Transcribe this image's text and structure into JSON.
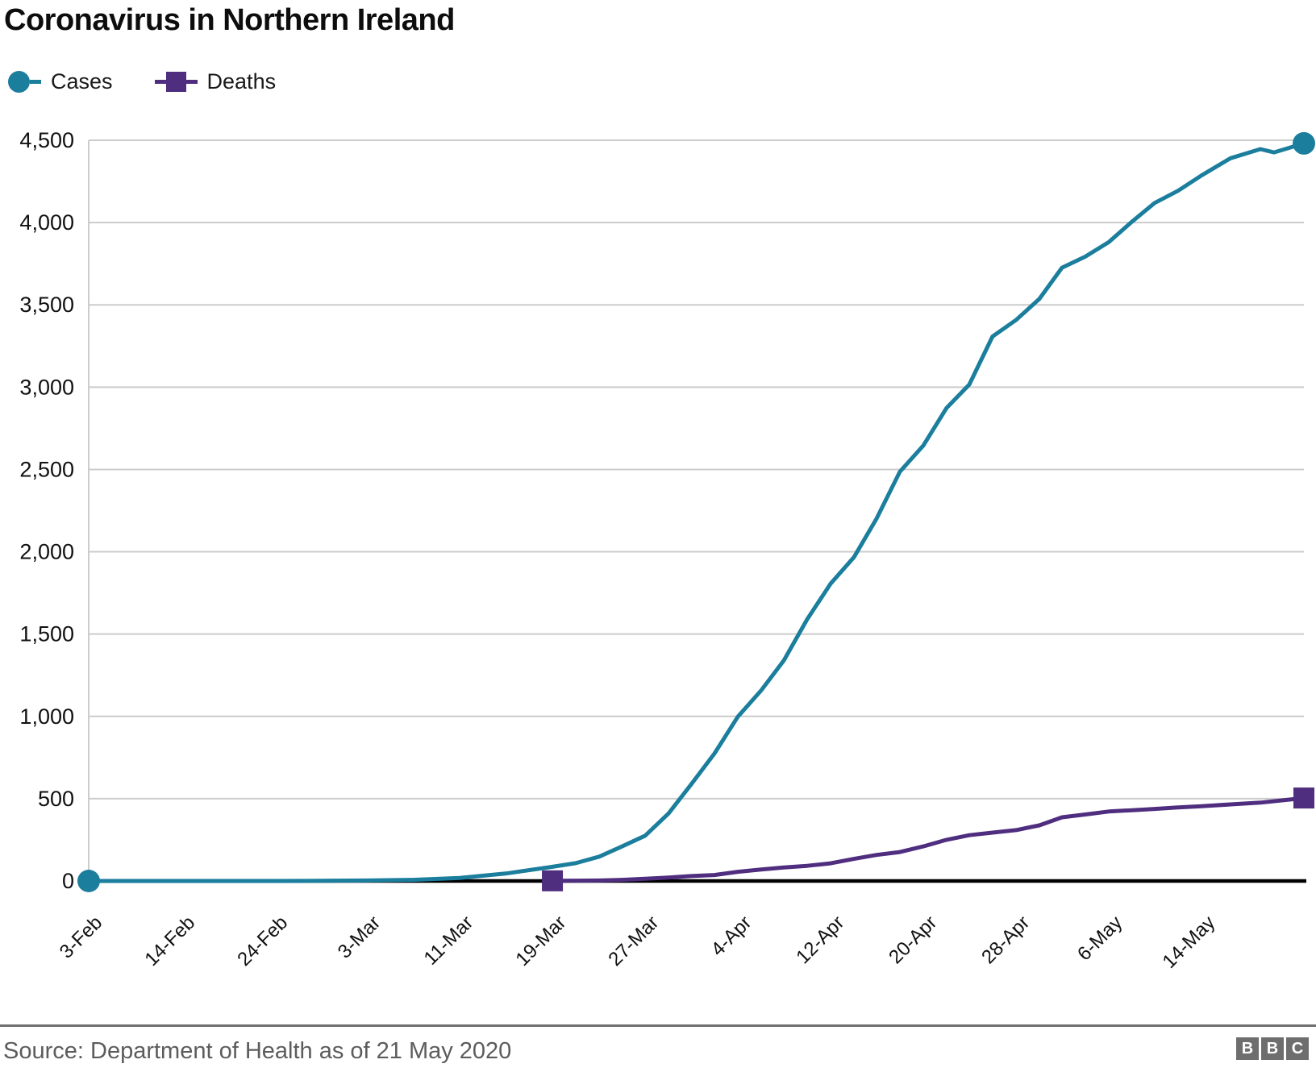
{
  "header": {
    "title": "Coronavirus in Northern Ireland"
  },
  "legend": {
    "items": [
      {
        "label": "Cases",
        "color": "#1b7e9d",
        "marker": "circle"
      },
      {
        "label": "Deaths",
        "color": "#4f2d7f",
        "marker": "square"
      }
    ]
  },
  "footer": {
    "source": "Source: Department of Health as of 21 May 2020",
    "logo_letters": [
      "B",
      "B",
      "C"
    ]
  },
  "chart_data": {
    "type": "line",
    "title": "Coronavirus in Northern Ireland",
    "xlabel": "",
    "ylabel": "",
    "ylim": [
      0,
      4500
    ],
    "grid": true,
    "legend_position": "top-left",
    "axis_color": "#000000",
    "grid_color": "#cccccc",
    "y_ticks": [
      {
        "label": "0",
        "value": 0
      },
      {
        "label": "500",
        "value": 500
      },
      {
        "label": "1,000",
        "value": 1000
      },
      {
        "label": "1,500",
        "value": 1500
      },
      {
        "label": "2,000",
        "value": 2000
      },
      {
        "label": "2,500",
        "value": 2500
      },
      {
        "label": "3,000",
        "value": 3000
      },
      {
        "label": "3,500",
        "value": 3500
      },
      {
        "label": "4,000",
        "value": 4000
      },
      {
        "label": "4,500",
        "value": 4500
      }
    ],
    "x_ticks": [
      {
        "label": "3-Feb",
        "t": 0.0
      },
      {
        "label": "14-Feb",
        "t": 0.0763
      },
      {
        "label": "24-Feb",
        "t": 0.1526
      },
      {
        "label": "3-Mar",
        "t": 0.2289
      },
      {
        "label": "11-Mar",
        "t": 0.3052
      },
      {
        "label": "19-Mar",
        "t": 0.3816
      },
      {
        "label": "27-Mar",
        "t": 0.4579
      },
      {
        "label": "4-Apr",
        "t": 0.5342
      },
      {
        "label": "12-Apr",
        "t": 0.6105
      },
      {
        "label": "20-Apr",
        "t": 0.6868
      },
      {
        "label": "28-Apr",
        "t": 0.7631
      },
      {
        "label": "6-May",
        "t": 0.8394
      },
      {
        "label": "14-May",
        "t": 0.9157
      }
    ],
    "series": [
      {
        "name": "Cases",
        "color": "#1b7e9d",
        "marker": "circle",
        "points": [
          [
            "3-Feb",
            0,
            0.0
          ],
          [
            "14-Feb",
            0,
            0.0763
          ],
          [
            "24-Feb",
            0,
            0.1526
          ],
          [
            "28-Feb",
            1,
            0.1904
          ],
          [
            "3-Mar",
            3,
            0.2289
          ],
          [
            "7-Mar",
            7,
            0.2668
          ],
          [
            "11-Mar",
            18,
            0.3052
          ],
          [
            "15-Mar",
            45,
            0.343
          ],
          [
            "19-Mar",
            86,
            0.3816
          ],
          [
            "21-Mar",
            108,
            0.4008
          ],
          [
            "23-Mar",
            148,
            0.4201
          ],
          [
            "25-Mar",
            209,
            0.4386
          ],
          [
            "27-Mar",
            275,
            0.4579
          ],
          [
            "29-Mar",
            410,
            0.4771
          ],
          [
            "31-Mar",
            586,
            0.4957
          ],
          [
            "2-Apr",
            774,
            0.5149
          ],
          [
            "4-Apr",
            998,
            0.5342
          ],
          [
            "6-Apr",
            1158,
            0.5534
          ],
          [
            "8-Apr",
            1339,
            0.572
          ],
          [
            "10-Apr",
            1589,
            0.5912
          ],
          [
            "12-Apr",
            1806,
            0.6105
          ],
          [
            "14-Apr",
            1967,
            0.6297
          ],
          [
            "16-Apr",
            2201,
            0.6483
          ],
          [
            "18-Apr",
            2486,
            0.6675
          ],
          [
            "20-Apr",
            2645,
            0.6868
          ],
          [
            "22-Apr",
            2874,
            0.706
          ],
          [
            "24-Apr",
            3016,
            0.7246
          ],
          [
            "26-Apr",
            3308,
            0.7438
          ],
          [
            "28-Apr",
            3408,
            0.7631
          ],
          [
            "30-Apr",
            3536,
            0.7823
          ],
          [
            "2-May",
            3726,
            0.8009
          ],
          [
            "4-May",
            3793,
            0.8201
          ],
          [
            "6-May",
            3881,
            0.8394
          ],
          [
            "8-May",
            4006,
            0.8586
          ],
          [
            "10-May",
            4119,
            0.8772
          ],
          [
            "12-May",
            4193,
            0.8964
          ],
          [
            "14-May",
            4286,
            0.9157
          ],
          [
            "16-May",
            4391,
            0.9396
          ],
          [
            "18-May",
            4446,
            0.9642
          ],
          [
            "19-May",
            4426,
            0.9754
          ],
          [
            "21-May",
            4481,
            1.0
          ]
        ]
      },
      {
        "name": "Deaths",
        "color": "#4f2d7f",
        "marker": "square",
        "points": [
          [
            "19-Mar",
            1,
            0.3816
          ],
          [
            "21-Mar",
            2,
            0.4008
          ],
          [
            "23-Mar",
            3,
            0.4201
          ],
          [
            "25-Mar",
            7,
            0.4386
          ],
          [
            "27-Mar",
            13,
            0.4579
          ],
          [
            "29-Mar",
            21,
            0.4771
          ],
          [
            "31-Mar",
            30,
            0.4957
          ],
          [
            "2-Apr",
            36,
            0.5149
          ],
          [
            "4-Apr",
            56,
            0.5342
          ],
          [
            "6-Apr",
            70,
            0.5534
          ],
          [
            "8-Apr",
            82,
            0.572
          ],
          [
            "10-Apr",
            92,
            0.5912
          ],
          [
            "12-Apr",
            107,
            0.6105
          ],
          [
            "14-Apr",
            134,
            0.6297
          ],
          [
            "16-Apr",
            158,
            0.6483
          ],
          [
            "18-Apr",
            176,
            0.6675
          ],
          [
            "20-Apr",
            210,
            0.6868
          ],
          [
            "22-Apr",
            250,
            0.706
          ],
          [
            "24-Apr",
            278,
            0.7246
          ],
          [
            "26-Apr",
            294,
            0.7438
          ],
          [
            "28-Apr",
            309,
            0.7631
          ],
          [
            "30-Apr",
            338,
            0.7823
          ],
          [
            "2-May",
            387,
            0.8009
          ],
          [
            "4-May",
            404,
            0.8201
          ],
          [
            "6-May",
            422,
            0.8394
          ],
          [
            "8-May",
            430,
            0.8586
          ],
          [
            "10-May",
            438,
            0.8772
          ],
          [
            "12-May",
            447,
            0.8964
          ],
          [
            "14-May",
            454,
            0.9157
          ],
          [
            "16-May",
            465,
            0.9396
          ],
          [
            "18-May",
            476,
            0.9642
          ],
          [
            "20-May",
            494,
            0.9874
          ],
          [
            "21-May",
            504,
            1.0
          ]
        ]
      }
    ]
  }
}
